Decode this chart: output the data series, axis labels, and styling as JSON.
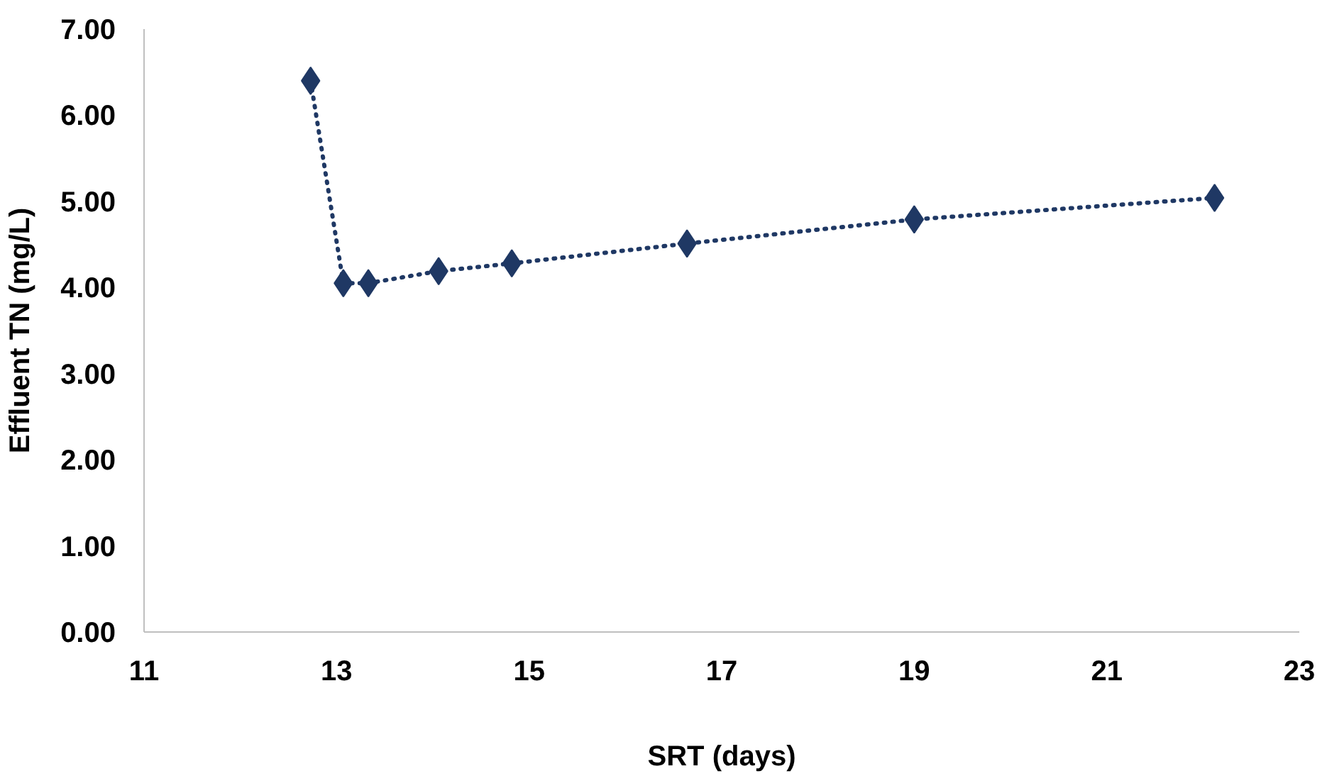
{
  "chart_data": {
    "type": "line",
    "xlabel": "SRT (days)",
    "ylabel": "Effluent TN (mg/L)",
    "x": [
      12.73,
      13.07,
      13.33,
      14.06,
      14.82,
      16.64,
      19.0,
      22.12
    ],
    "series": [
      {
        "color": "#1f3864",
        "values": [
          6.4,
          4.05,
          4.05,
          4.19,
          4.28,
          4.51,
          4.79,
          5.04
        ]
      }
    ],
    "xlim": [
      11,
      23
    ],
    "xticks": [
      11,
      13,
      15,
      17,
      19,
      21,
      23
    ],
    "ylim": [
      0,
      7
    ],
    "yticks": [
      {
        "value": 0,
        "label": "0.00"
      },
      {
        "value": 1,
        "label": "1.00"
      },
      {
        "value": 2,
        "label": "2.00"
      },
      {
        "value": 3,
        "label": "3.00"
      },
      {
        "value": 4,
        "label": "4.00"
      },
      {
        "value": 5,
        "label": "5.00"
      },
      {
        "value": 6,
        "label": "6.00"
      },
      {
        "value": 7,
        "label": "7.00"
      }
    ],
    "marker": "diamond",
    "line_style": "dotted",
    "grid": false
  }
}
